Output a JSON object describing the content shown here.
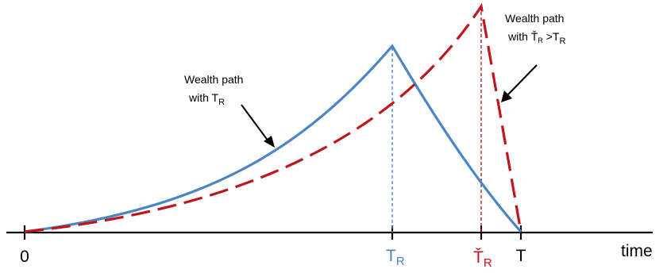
{
  "colors": {
    "blue": "#4a86c4",
    "red": "#c0151b",
    "axis": "#000000",
    "text": "#000000"
  },
  "axis": {
    "origin_label": "0",
    "x_label": "time",
    "t_label": "T",
    "tr_label_main": "T",
    "tr_label_sub": "R",
    "tr_check_label_main": "Ť",
    "tr_check_label_sub": "R"
  },
  "annotations": {
    "blue_line1": "Wealth path",
    "blue_line2_main": "with T",
    "blue_line2_sub": "R",
    "red_line1": "Wealth path",
    "red_line2_prefix": "with Ť",
    "red_line2_sub1": "R",
    "red_line2_mid": " >T",
    "red_line2_sub2": "R"
  },
  "curves": [
    {
      "name": "wealth-path-TR",
      "style": "solid",
      "color": "blue"
    },
    {
      "name": "wealth-path-TR-check",
      "style": "dashed",
      "color": "red"
    }
  ]
}
